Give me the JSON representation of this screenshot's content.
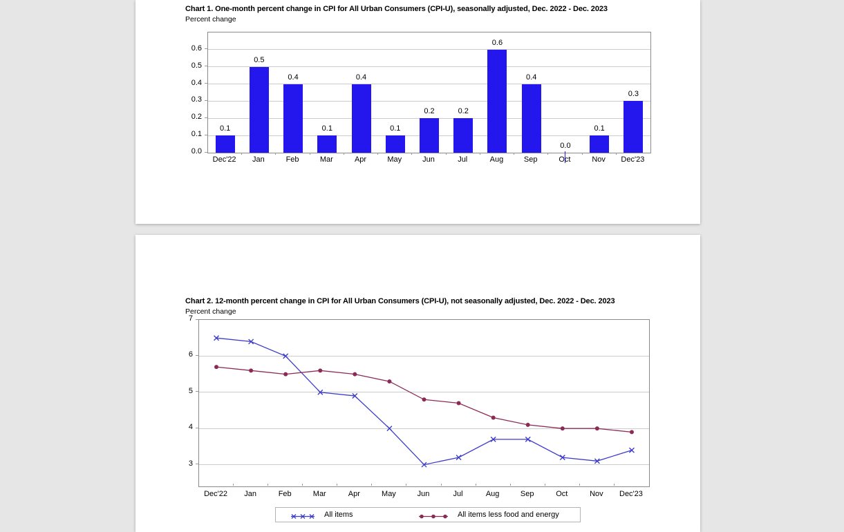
{
  "background_color": "#e6e6e6",
  "page_color": "#ffffff",
  "styles": {
    "grid_color": "#cccccc",
    "plot_border_color": "#8a8a8a",
    "tick_color": "#999999",
    "text_color": "#000000",
    "legend_border_color": "#b3b3b3"
  },
  "chart_data": [
    {
      "type": "bar",
      "title": "Chart 1. One-month percent change in CPI for All Urban Consumers (CPI-U), seasonally adjusted, Dec. 2022 - Dec. 2023",
      "caption": "Percent change",
      "categories": [
        "Dec'22",
        "Jan",
        "Feb",
        "Mar",
        "Apr",
        "May",
        "Jun",
        "Jul",
        "Aug",
        "Sep",
        "Oct",
        "Nov",
        "Dec'23"
      ],
      "values": [
        0.1,
        0.5,
        0.4,
        0.1,
        0.4,
        0.1,
        0.2,
        0.2,
        0.6,
        0.4,
        0.0,
        0.1,
        0.3
      ],
      "bar_color": "#2417ee",
      "yticks": [
        0.0,
        0.1,
        0.2,
        0.3,
        0.4,
        0.5,
        0.6
      ],
      "ytick_decimals": 1,
      "ylim": [
        0,
        0.7
      ],
      "grid": true,
      "data_labels": true,
      "legend_position": "none"
    },
    {
      "type": "line",
      "title": "Chart 2. 12-month percent change in CPI for All Urban Consumers (CPI-U), not seasonally adjusted, Dec. 2022 - Dec. 2023",
      "caption": "Percent change",
      "categories": [
        "Dec'22",
        "Jan",
        "Feb",
        "Mar",
        "Apr",
        "May",
        "Jun",
        "Jul",
        "Aug",
        "Sep",
        "Oct",
        "Nov",
        "Dec'23"
      ],
      "series": [
        {
          "name": "All items",
          "marker": "x",
          "color": "#3c3ccc",
          "values": [
            6.5,
            6.4,
            6.0,
            5.0,
            4.9,
            4.0,
            3.0,
            3.2,
            3.7,
            3.7,
            3.2,
            3.1,
            3.4
          ]
        },
        {
          "name": "All items less food and energy",
          "marker": "dot",
          "color": "#8b2a55",
          "values": [
            5.7,
            5.6,
            5.5,
            5.6,
            5.5,
            5.3,
            4.8,
            4.7,
            4.3,
            4.1,
            4.0,
            4.0,
            3.9
          ]
        }
      ],
      "yticks": [
        7,
        6,
        5,
        4,
        3
      ],
      "ytick_decimals": 0,
      "ylim": [
        2.4,
        7.0
      ],
      "grid": true,
      "legend_position": "bottom"
    }
  ]
}
